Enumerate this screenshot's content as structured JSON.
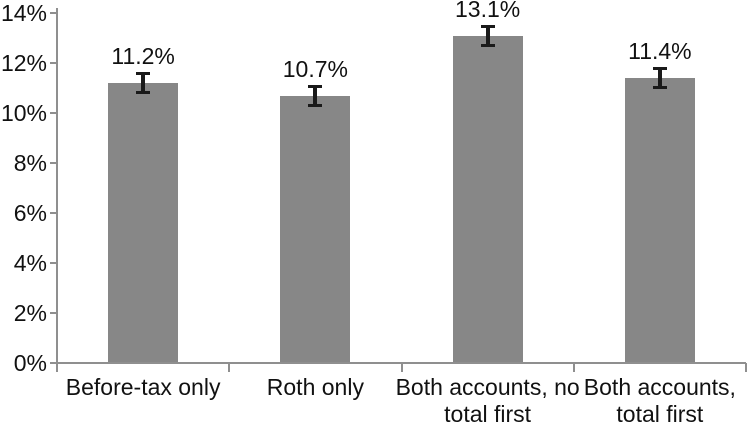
{
  "chart_data": {
    "type": "bar",
    "title": "",
    "xlabel": "",
    "ylabel": "",
    "categories": [
      "Before-tax only",
      "Roth only",
      "Both accounts, no\ntotal first",
      "Both accounts,\ntotal first"
    ],
    "values": [
      11.2,
      10.7,
      13.1,
      11.4
    ],
    "value_labels": [
      "11.2%",
      "10.7%",
      "13.1%",
      "11.4%"
    ],
    "error_bar_half_pct": 0.45,
    "y_tick_values": [
      0,
      2,
      4,
      6,
      8,
      10,
      12,
      14
    ],
    "y_tick_labels": [
      "0%",
      "2%",
      "4%",
      "6%",
      "8%",
      "10%",
      "12%",
      "14%"
    ],
    "ylim": [
      0,
      14
    ],
    "grid": false,
    "legend": null,
    "colors": {
      "bar_fill": "#878787",
      "axis": "#8f8f8f",
      "error_bar": "#1a1a1a",
      "text": "#111111"
    }
  }
}
